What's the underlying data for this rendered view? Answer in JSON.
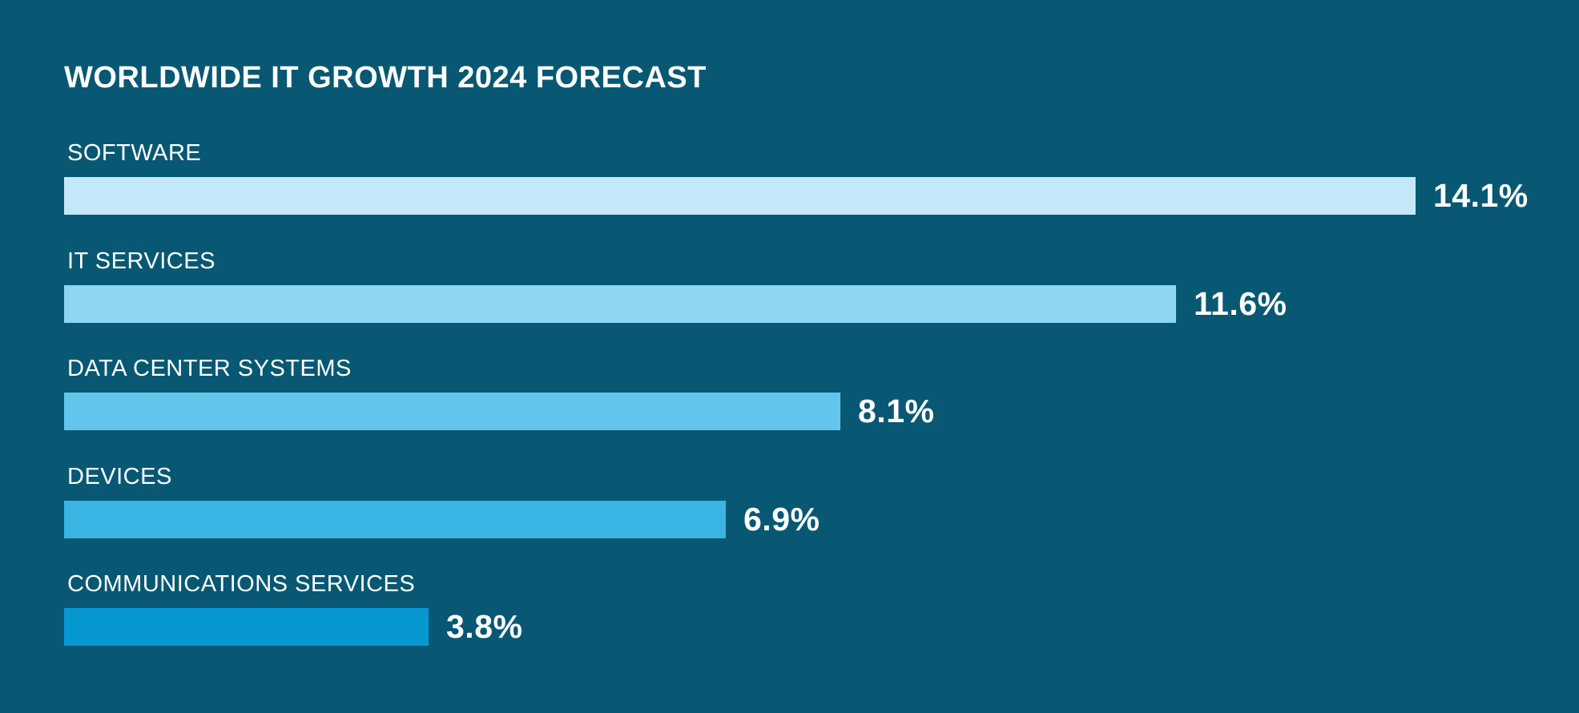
{
  "title": "WORLDWIDE IT GROWTH 2024 FORECAST",
  "colors": {
    "background": "#085873",
    "text": "#FFFFFF",
    "bar_colors": [
      "#C4E8F8",
      "#8DD7F3",
      "#62C6EC",
      "#3AB4E3",
      "#0798D2"
    ]
  },
  "chart_data": {
    "type": "bar",
    "orientation": "horizontal",
    "title": "WORLDWIDE IT GROWTH 2024 FORECAST",
    "categories": [
      "SOFTWARE",
      "IT SERVICES",
      "DATA CENTER SYSTEMS",
      "DEVICES",
      "COMMUNICATIONS SERVICES"
    ],
    "values": [
      14.1,
      11.6,
      8.1,
      6.9,
      3.8
    ],
    "value_labels": [
      "14.1%",
      "11.6%",
      "8.1%",
      "6.9%",
      "3.8%"
    ],
    "unit": "%",
    "xlim": [
      0,
      14.1
    ],
    "bar_colors": [
      "#C4E8F8",
      "#8DD7F3",
      "#62C6EC",
      "#3AB4E3",
      "#0798D2"
    ],
    "grid": false,
    "legend": false,
    "value_label_position": "right-of-bar"
  }
}
